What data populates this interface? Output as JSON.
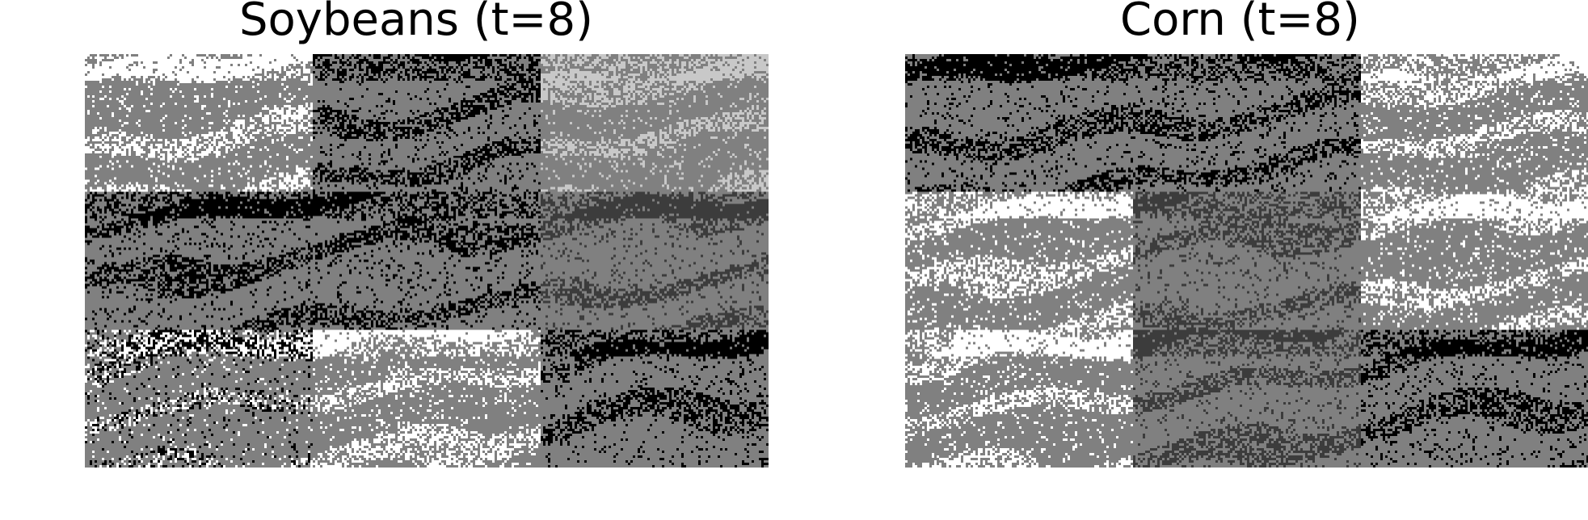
{
  "figure": {
    "panels": [
      {
        "title": "Soybeans (t=8)",
        "tiles": [
          [
            "white",
            "black",
            "lightgray"
          ],
          [
            "black",
            "black",
            "darkgray"
          ],
          [
            "mixed",
            "white",
            "black"
          ]
        ]
      },
      {
        "title": "Corn (t=8)",
        "tiles": [
          [
            "black",
            "black",
            "white"
          ],
          [
            "white",
            "darkgray",
            "white"
          ],
          [
            "white",
            "darkgray",
            "black"
          ]
        ]
      }
    ],
    "colors": {
      "background_gray": "#808080",
      "white": "#ffffff",
      "black": "#000000",
      "lightgray": "#c8c8c8",
      "darkgray": "#3c3c3c"
    }
  }
}
